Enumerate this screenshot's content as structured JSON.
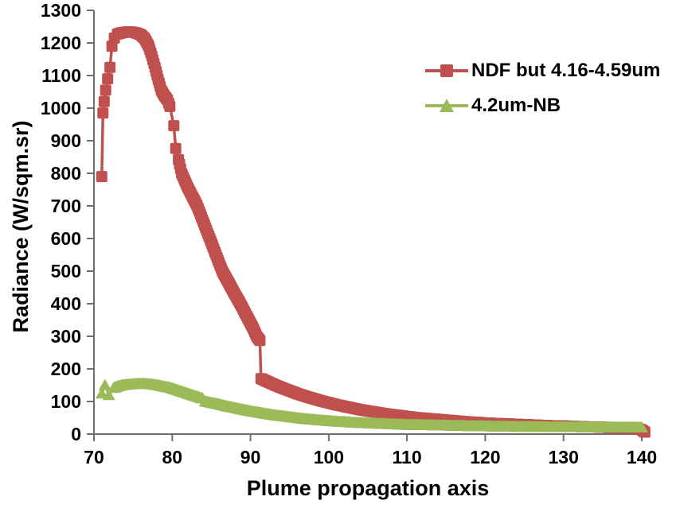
{
  "chart_data": {
    "type": "line",
    "title": "",
    "xlabel": "Plume propagation axis",
    "ylabel": "Radiance (W/sqm.sr)",
    "xlim": [
      70,
      140
    ],
    "ylim": [
      0,
      1300
    ],
    "x_ticks": [
      70,
      80,
      90,
      100,
      110,
      120,
      130,
      140
    ],
    "y_ticks": [
      0,
      100,
      200,
      300,
      400,
      500,
      600,
      700,
      800,
      900,
      1000,
      1100,
      1200,
      1300
    ],
    "grid": "off",
    "legend_position": "inside-upper-right",
    "axis_color": "#6e6e6e",
    "text_color": "#000000",
    "background_color": "#ffffff",
    "series": [
      {
        "name": "NDF but 4.16-4.59um",
        "color": "#C0504D",
        "marker": "square",
        "segments": [
          {
            "dense": false,
            "points": [
              [
                71,
                790
              ],
              [
                71.15,
                985
              ],
              [
                71.3,
                1020
              ],
              [
                71.5,
                1055
              ],
              [
                71.75,
                1090
              ],
              [
                72.05,
                1125
              ],
              [
                72.3,
                1190
              ],
              [
                72.6,
                1215
              ]
            ]
          },
          {
            "dense": true,
            "points": [
              [
                73,
                1227
              ],
              [
                73.5,
                1231
              ],
              [
                74,
                1233
              ],
              [
                74.5,
                1234
              ],
              [
                75,
                1233
              ],
              [
                75.5,
                1230
              ],
              [
                76,
                1225
              ],
              [
                76.5,
                1213
              ],
              [
                77,
                1190
              ],
              [
                77.4,
                1160
              ],
              [
                77.8,
                1125
              ],
              [
                78.2,
                1088
              ],
              [
                78.6,
                1055
              ],
              [
                79,
                1038
              ],
              [
                79.4,
                1025
              ],
              [
                79.7,
                1005
              ]
            ]
          },
          {
            "dense": false,
            "points": [
              [
                80.2,
                946
              ],
              [
                80.45,
                876
              ]
            ]
          },
          {
            "dense": true,
            "points": [
              [
                80.8,
                842
              ],
              [
                81.2,
                800
              ],
              [
                82,
                756
              ],
              [
                82.6,
                728
              ],
              [
                83.2,
                700
              ],
              [
                83.6,
                675
              ],
              [
                84,
                650
              ],
              [
                84.4,
                625
              ],
              [
                84.8,
                600
              ],
              [
                85.2,
                575
              ],
              [
                85.6,
                550
              ],
              [
                86,
                525
              ],
              [
                86.4,
                500
              ],
              [
                86.9,
                478
              ],
              [
                87.4,
                456
              ],
              [
                87.9,
                434
              ],
              [
                88.3,
                417
              ],
              [
                88.7,
                400
              ],
              [
                89.1,
                382
              ],
              [
                89.5,
                363
              ],
              [
                89.9,
                345
              ],
              [
                90.3,
                327
              ],
              [
                90.8,
                300
              ],
              [
                91.2,
                287
              ]
            ]
          },
          {
            "dense": true,
            "points": [
              [
                91.35,
                170
              ],
              [
                92,
                163
              ],
              [
                93,
                152
              ],
              [
                94,
                142
              ],
              [
                95,
                133
              ],
              [
                96,
                124
              ],
              [
                97,
                116
              ],
              [
                98,
                109
              ],
              [
                99,
                102
              ],
              [
                100,
                96
              ],
              [
                101,
                90
              ],
              [
                102,
                85
              ],
              [
                103,
                80
              ],
              [
                104,
                75
              ],
              [
                105,
                71
              ],
              [
                106,
                67
              ],
              [
                107,
                63
              ],
              [
                108,
                60
              ],
              [
                109,
                57
              ],
              [
                110,
                54
              ],
              [
                111,
                51
              ],
              [
                112,
                49
              ],
              [
                113,
                47
              ],
              [
                114,
                45
              ],
              [
                115,
                43
              ],
              [
                116,
                41
              ],
              [
                117,
                39
              ],
              [
                118,
                37
              ],
              [
                119,
                36
              ],
              [
                120,
                34
              ],
              [
                121,
                33
              ],
              [
                122,
                32
              ],
              [
                123,
                31
              ],
              [
                124,
                30
              ],
              [
                125,
                29
              ],
              [
                126,
                28
              ],
              [
                127,
                27
              ],
              [
                128,
                26
              ],
              [
                129,
                25
              ],
              [
                130,
                25
              ],
              [
                131,
                24
              ],
              [
                132,
                23
              ],
              [
                133,
                22
              ],
              [
                134,
                22
              ],
              [
                135,
                21
              ],
              [
                136,
                20
              ],
              [
                137,
                19
              ],
              [
                138,
                18
              ],
              [
                139,
                17
              ],
              [
                139.6,
                16
              ],
              [
                140,
                13
              ],
              [
                140.4,
                6
              ]
            ]
          }
        ]
      },
      {
        "name": "4.2um-NB",
        "color": "#9BBB59",
        "marker": "triangle",
        "segments": [
          {
            "dense": false,
            "points": [
              [
                71,
                125
              ],
              [
                71.4,
                151
              ],
              [
                71.9,
                120
              ]
            ]
          },
          {
            "dense": true,
            "points": [
              [
                72.5,
                142
              ],
              [
                73,
                147
              ],
              [
                73.5,
                150
              ],
              [
                74,
                152
              ],
              [
                74.5,
                153
              ],
              [
                75,
                154
              ],
              [
                75.5,
                155
              ],
              [
                76,
                155
              ],
              [
                76.5,
                155
              ],
              [
                77,
                154
              ],
              [
                77.5,
                153
              ],
              [
                78,
                151
              ],
              [
                78.5,
                149
              ],
              [
                79,
                146
              ],
              [
                79.5,
                144
              ],
              [
                80,
                141
              ],
              [
                80.5,
                137
              ],
              [
                81,
                133
              ],
              [
                81.5,
                129
              ],
              [
                82,
                125
              ],
              [
                82.5,
                121
              ],
              [
                83,
                117
              ],
              [
                83.5,
                113
              ],
              [
                83.9,
                110
              ]
            ]
          },
          {
            "dense": true,
            "points": [
              [
                84.2,
                101
              ],
              [
                85,
                97
              ],
              [
                86,
                92
              ],
              [
                87,
                86
              ],
              [
                88,
                81
              ],
              [
                89,
                76
              ],
              [
                90,
                71
              ],
              [
                91,
                67
              ],
              [
                92,
                63
              ],
              [
                93,
                59
              ],
              [
                94,
                56
              ],
              [
                95,
                53
              ],
              [
                96,
                50
              ],
              [
                97,
                47
              ],
              [
                98,
                45
              ],
              [
                99,
                43
              ],
              [
                100,
                41
              ],
              [
                101,
                39
              ],
              [
                102,
                38
              ],
              [
                103,
                36
              ],
              [
                104,
                35
              ],
              [
                105,
                34
              ],
              [
                106,
                33
              ],
              [
                107,
                32
              ],
              [
                108,
                31
              ],
              [
                109,
                30
              ],
              [
                110,
                29
              ],
              [
                111,
                29
              ],
              [
                112,
                28
              ],
              [
                113,
                28
              ],
              [
                114,
                27
              ],
              [
                115,
                27
              ],
              [
                116,
                26
              ],
              [
                117,
                26
              ],
              [
                118,
                25
              ],
              [
                119,
                25
              ],
              [
                120,
                25
              ],
              [
                121,
                24
              ],
              [
                122,
                24
              ],
              [
                123,
                24
              ],
              [
                124,
                23
              ],
              [
                125,
                23
              ],
              [
                126,
                23
              ],
              [
                127,
                23
              ],
              [
                128,
                22
              ],
              [
                129,
                22
              ],
              [
                130,
                22
              ],
              [
                131,
                22
              ],
              [
                132,
                22
              ],
              [
                133,
                21
              ],
              [
                134,
                21
              ],
              [
                135,
                21
              ],
              [
                136,
                21
              ],
              [
                137,
                21
              ],
              [
                138,
                21
              ],
              [
                139,
                21
              ],
              [
                140,
                21
              ]
            ]
          }
        ]
      }
    ]
  }
}
